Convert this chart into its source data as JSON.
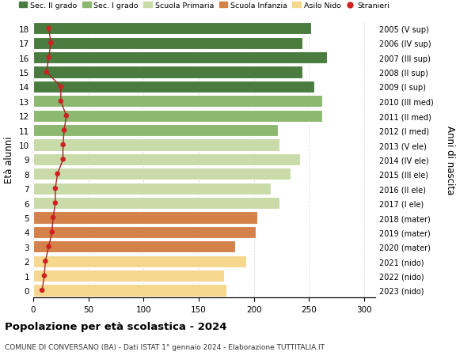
{
  "ages": [
    0,
    1,
    2,
    3,
    4,
    5,
    6,
    7,
    8,
    9,
    10,
    11,
    12,
    13,
    14,
    15,
    16,
    17,
    18
  ],
  "right_labels": [
    "2023 (nido)",
    "2022 (nido)",
    "2021 (nido)",
    "2020 (mater)",
    "2019 (mater)",
    "2018 (mater)",
    "2017 (I ele)",
    "2016 (II ele)",
    "2015 (III ele)",
    "2014 (IV ele)",
    "2013 (V ele)",
    "2012 (I med)",
    "2011 (II med)",
    "2010 (III med)",
    "2009 (I sup)",
    "2008 (II sup)",
    "2007 (III sup)",
    "2006 (IV sup)",
    "2005 (V sup)"
  ],
  "bar_values": [
    175,
    173,
    193,
    183,
    202,
    203,
    223,
    215,
    233,
    242,
    223,
    222,
    262,
    262,
    255,
    244,
    266,
    244,
    252
  ],
  "stranieri": [
    8,
    10,
    11,
    14,
    17,
    18,
    20,
    20,
    22,
    27,
    27,
    28,
    30,
    25,
    25,
    12,
    14,
    16,
    14
  ],
  "bar_colors": [
    "#f5d78e",
    "#f5d78e",
    "#f5d78e",
    "#d4814a",
    "#d4814a",
    "#d4814a",
    "#c8dba8",
    "#c8dba8",
    "#c8dba8",
    "#c8dba8",
    "#c8dba8",
    "#8db870",
    "#8db870",
    "#8db870",
    "#4a7c3f",
    "#4a7c3f",
    "#4a7c3f",
    "#4a7c3f",
    "#4a7c3f"
  ],
  "legend_labels": [
    "Sec. II grado",
    "Sec. I grado",
    "Scuola Primaria",
    "Scuola Infanzia",
    "Asilo Nido",
    "Stranieri"
  ],
  "legend_colors": [
    "#4a7c3f",
    "#8db870",
    "#c8dba8",
    "#d4814a",
    "#f5d78e",
    "#cc2222"
  ],
  "title": "Popolazione per età scolastica - 2024",
  "subtitle": "COMUNE DI CONVERSANO (BA) - Dati ISTAT 1° gennaio 2024 - Elaborazione TUTTITALIA.IT",
  "ylabel_label": "Età alunni",
  "right_ylabel": "Anni di nascita",
  "xlim": [
    0,
    310
  ],
  "xticks": [
    0,
    50,
    100,
    150,
    200,
    250,
    300
  ],
  "background_color": "#ffffff",
  "stranieri_color": "#cc2222",
  "line_color": "#aa2222"
}
